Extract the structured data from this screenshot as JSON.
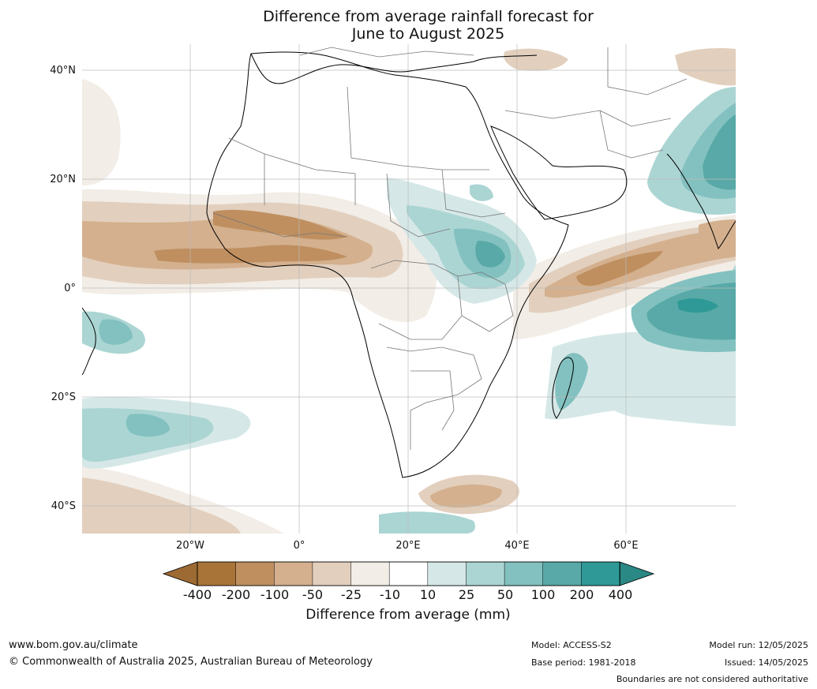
{
  "title_line1": "Difference from average rainfall forecast for",
  "title_line2": "June to August 2025",
  "lat_labels": [
    "40°N",
    "20°N",
    "0°",
    "20°S",
    "40°S"
  ],
  "lon_labels": [
    "20°W",
    "0°",
    "20°E",
    "40°E",
    "60°E"
  ],
  "colorbar": {
    "labels": [
      "-400",
      "-200",
      "-100",
      "-50",
      "-25",
      "-10",
      "10",
      "25",
      "50",
      "100",
      "200",
      "400"
    ],
    "colors": [
      "#a97438",
      "#bf8f60",
      "#d4b08e",
      "#e2cfbd",
      "#f2ede6",
      "#ffffff",
      "#d5e8e7",
      "#abd5d3",
      "#82c1bf",
      "#58a9a7",
      "#2e9996"
    ],
    "below_color": "#9c6a32",
    "above_color": "#2a8885",
    "title": "Difference from average (mm)"
  },
  "footer": {
    "website": "www.bom.gov.au/climate",
    "copyright": "© Commonwealth of Australia 2025, Australian Bureau of Meteorology",
    "model": "Model: ACCESS-S2",
    "base_period": "Base period: 1981-2018",
    "model_run": "Model run: 12/05/2025",
    "issued": "Issued: 14/05/2025",
    "disclaimer": "Boundaries are not considered authoritative"
  }
}
